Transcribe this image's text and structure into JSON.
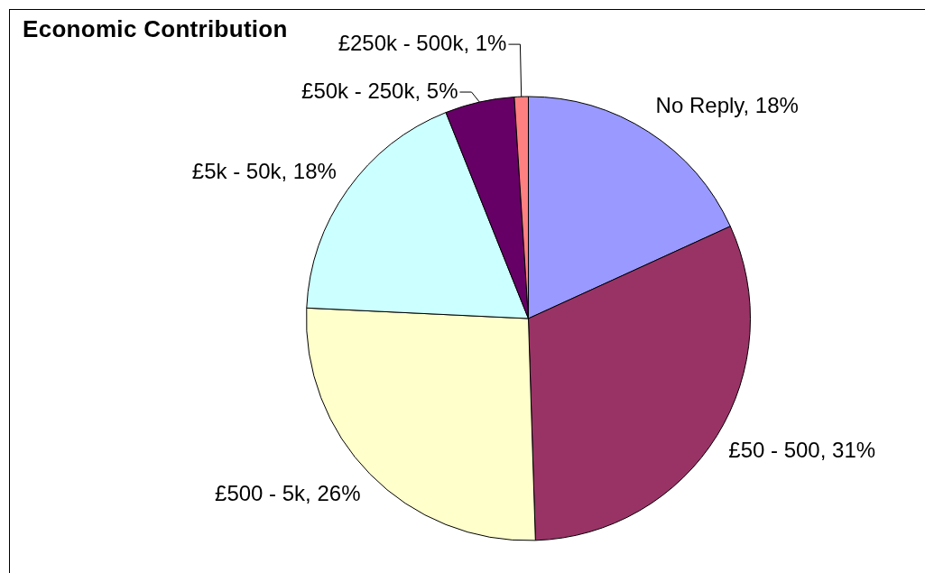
{
  "chart_data": {
    "type": "pie",
    "title": "Economic Contribution",
    "categories": [
      "No Reply",
      "£50 - 500",
      "£500 - 5k",
      "£5k - 50k",
      "£50k - 250k",
      "£250k - 500k"
    ],
    "values": [
      18,
      31,
      26,
      18,
      5,
      1
    ],
    "value_labels": [
      "18%",
      "31%",
      "26%",
      "18%",
      "5%",
      "1%"
    ],
    "colors": [
      "#9999ff",
      "#993366",
      "#ffffcc",
      "#ccffff",
      "#660066",
      "#ff8080"
    ]
  }
}
